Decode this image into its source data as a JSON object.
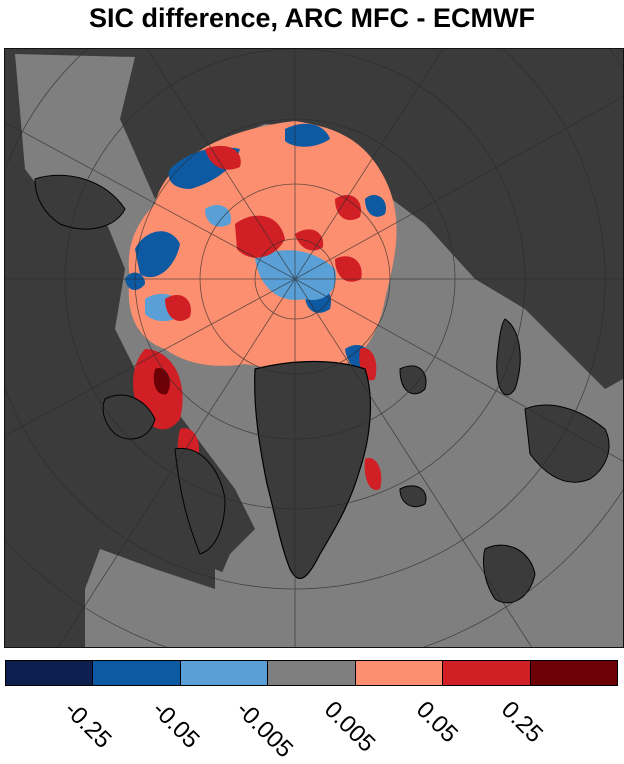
{
  "title": "SIC difference, ARC MFC - ECMWF",
  "colors": {
    "land": "#3b3b3b",
    "no_difference": "#7f7f7f",
    "coastline": "#000000",
    "grid": "#2a2a2a"
  },
  "colorbar": {
    "segments": [
      {
        "color": "#0d1f4f"
      },
      {
        "color": "#0d5aa3"
      },
      {
        "color": "#5aa0d6"
      },
      {
        "color": "#7f7f7f"
      },
      {
        "color": "#fb8f6f"
      },
      {
        "color": "#d11f26"
      },
      {
        "color": "#6b0007"
      }
    ],
    "tick_labels": [
      "-0.25",
      "-0.05",
      "-0.005",
      "0.005",
      "0.05",
      "0.25"
    ]
  }
}
